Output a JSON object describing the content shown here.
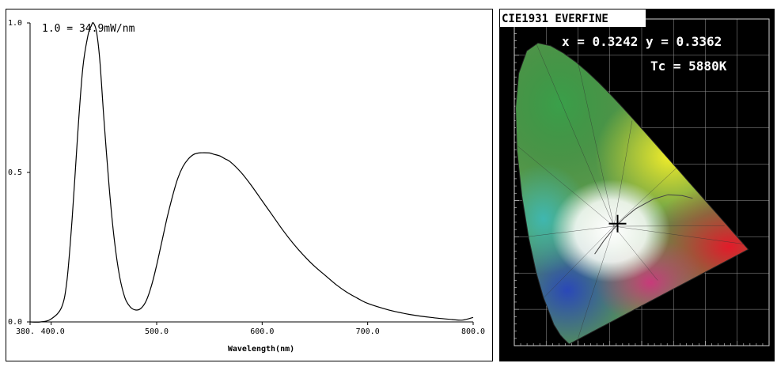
{
  "chart_data": [
    {
      "type": "line",
      "annotation": "1.0 = 34.9mW/nm",
      "xlabel": "Wavelength(nm)",
      "ylabel": "",
      "xlim": [
        380,
        800
      ],
      "ylim": [
        0,
        1.0
      ],
      "x_ticks": [
        {
          "value": 380,
          "label": "380."
        },
        {
          "value": 400,
          "label": "400.0"
        },
        {
          "value": 500,
          "label": "500.0"
        },
        {
          "value": 600,
          "label": "600.0"
        },
        {
          "value": 700,
          "label": "700.0"
        },
        {
          "value": 800,
          "label": "800.0"
        }
      ],
      "y_ticks": [
        {
          "value": 0,
          "label": "0.0"
        },
        {
          "value": 0.5,
          "label": "0.5"
        },
        {
          "value": 1.0,
          "label": "1.0"
        }
      ],
      "series": [
        {
          "x": [
            380,
            390,
            400,
            410,
            415,
            420,
            425,
            430,
            435,
            438,
            440,
            443,
            446,
            450,
            455,
            460,
            465,
            470,
            475,
            480,
            485,
            490,
            495,
            500,
            505,
            510,
            515,
            520,
            525,
            530,
            535,
            540,
            545,
            550,
            555,
            560,
            565,
            570,
            580,
            590,
            600,
            610,
            620,
            630,
            640,
            650,
            660,
            670,
            680,
            690,
            700,
            720,
            740,
            760,
            780,
            790,
            800
          ],
          "y": [
            0.0,
            0.0,
            0.01,
            0.05,
            0.14,
            0.35,
            0.62,
            0.85,
            0.96,
            0.99,
            1.0,
            0.97,
            0.88,
            0.68,
            0.45,
            0.27,
            0.15,
            0.08,
            0.05,
            0.04,
            0.045,
            0.07,
            0.12,
            0.19,
            0.27,
            0.35,
            0.42,
            0.48,
            0.52,
            0.545,
            0.56,
            0.565,
            0.566,
            0.565,
            0.56,
            0.555,
            0.545,
            0.535,
            0.5,
            0.455,
            0.405,
            0.355,
            0.305,
            0.26,
            0.22,
            0.185,
            0.155,
            0.125,
            0.1,
            0.08,
            0.062,
            0.04,
            0.025,
            0.015,
            0.008,
            0.006,
            0.015
          ]
        }
      ]
    },
    {
      "type": "scatter",
      "title": "CIE1931 EVERFINE",
      "readout_xy": "x = 0.3242 y = 0.3362",
      "readout_tc": "Tc = 5880K",
      "point": {
        "x": 0.3242,
        "y": 0.3362
      },
      "xlim": [
        0,
        0.8
      ],
      "ylim": [
        0,
        0.9
      ]
    }
  ]
}
